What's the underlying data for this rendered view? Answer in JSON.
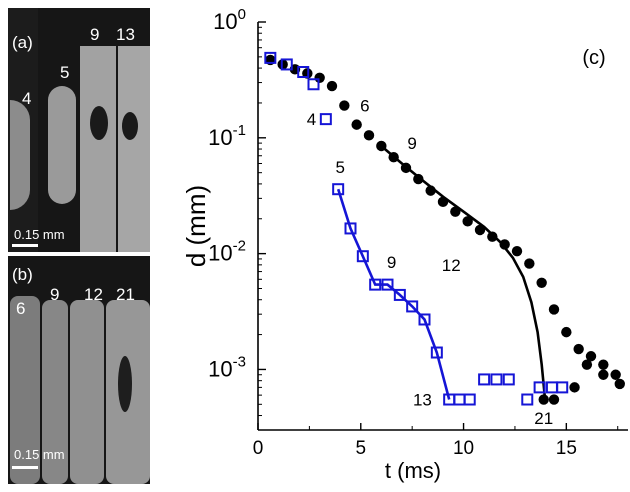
{
  "images": {
    "panel_a": {
      "label": "(a)",
      "frame_labels": [
        "4",
        "5",
        "9",
        "13"
      ],
      "scale_text": "0.15 mm"
    },
    "panel_b": {
      "label": "(b)",
      "frame_labels": [
        "6",
        "9",
        "12",
        "21"
      ],
      "scale_text": "0.15 mm"
    }
  },
  "chart_data": {
    "type": "scatter",
    "panel_label": "(c)",
    "xlabel": "t (ms)",
    "ylabel": "d (mm)",
    "xlim": [
      0,
      18
    ],
    "ylim": [
      0.0003,
      1
    ],
    "yscale": "log",
    "x_ticks": [
      0,
      5,
      10,
      15
    ],
    "y_ticks": [
      {
        "value": 1,
        "base": "10",
        "exp": "0"
      },
      {
        "value": 0.1,
        "base": "10",
        "exp": "-1"
      },
      {
        "value": 0.01,
        "base": "10",
        "exp": "-2"
      },
      {
        "value": 0.001,
        "base": "10",
        "exp": "-3"
      }
    ],
    "series": [
      {
        "marker": "circle-filled",
        "color": "#000000",
        "points": [
          [
            0.6,
            0.47
          ],
          [
            1.2,
            0.43
          ],
          [
            1.8,
            0.39
          ],
          [
            2.4,
            0.36
          ],
          [
            3.0,
            0.33
          ],
          [
            3.6,
            0.28
          ],
          [
            4.2,
            0.19
          ],
          [
            4.8,
            0.13
          ],
          [
            5.4,
            0.105
          ],
          [
            6.0,
            0.085
          ],
          [
            6.6,
            0.068
          ],
          [
            7.2,
            0.055
          ],
          [
            7.8,
            0.044
          ],
          [
            8.4,
            0.035
          ],
          [
            9.0,
            0.028
          ],
          [
            9.6,
            0.023
          ],
          [
            10.2,
            0.019
          ],
          [
            10.8,
            0.016
          ],
          [
            11.4,
            0.014
          ],
          [
            12.0,
            0.012
          ],
          [
            12.6,
            0.0105
          ],
          [
            13.2,
            0.0082
          ],
          [
            13.8,
            0.0056
          ],
          [
            14.4,
            0.0033
          ],
          [
            15.0,
            0.0021
          ],
          [
            15.6,
            0.0015
          ],
          [
            16.2,
            0.0013
          ],
          [
            16.8,
            0.0011
          ],
          [
            17.4,
            0.0009
          ],
          [
            13.9,
            0.00055
          ],
          [
            14.4,
            0.00055
          ],
          [
            15.4,
            0.0007
          ],
          [
            16.0,
            0.0011
          ],
          [
            16.8,
            0.0009
          ],
          [
            17.6,
            0.00075
          ]
        ]
      },
      {
        "marker": "square-open",
        "color": "#1515d6",
        "points": [
          [
            0.6,
            0.49
          ],
          [
            1.4,
            0.43
          ],
          [
            2.2,
            0.37
          ],
          [
            2.7,
            0.29
          ],
          [
            3.3,
            0.145
          ],
          [
            3.9,
            0.036
          ],
          [
            4.5,
            0.0165
          ],
          [
            5.1,
            0.0095
          ],
          [
            5.7,
            0.0054
          ],
          [
            6.3,
            0.0054
          ],
          [
            6.9,
            0.0044
          ],
          [
            7.5,
            0.0035
          ],
          [
            8.1,
            0.0027
          ],
          [
            8.7,
            0.0014
          ],
          [
            9.3,
            0.00055
          ],
          [
            9.8,
            0.00055
          ],
          [
            10.3,
            0.00055
          ],
          [
            11.0,
            0.00082
          ],
          [
            11.6,
            0.00082
          ],
          [
            12.2,
            0.00082
          ],
          [
            13.1,
            0.00055
          ],
          [
            13.7,
            0.0007
          ],
          [
            14.3,
            0.0007
          ],
          [
            14.8,
            0.0007
          ]
        ]
      }
    ],
    "fit_lines": [
      {
        "color": "#000000",
        "points": [
          [
            6.0,
            0.085
          ],
          [
            7.0,
            0.06
          ],
          [
            8.0,
            0.043
          ],
          [
            9.0,
            0.031
          ],
          [
            10.0,
            0.023
          ],
          [
            11.0,
            0.017
          ],
          [
            11.8,
            0.0125
          ],
          [
            12.4,
            0.0092
          ],
          [
            12.9,
            0.0063
          ],
          [
            13.3,
            0.0038
          ],
          [
            13.6,
            0.0021
          ],
          [
            13.8,
            0.0011
          ],
          [
            13.95,
            0.00058
          ]
        ]
      },
      {
        "color": "#1515d6",
        "points": [
          [
            3.9,
            0.036
          ],
          [
            4.5,
            0.0165
          ],
          [
            5.1,
            0.0095
          ],
          [
            5.7,
            0.0054
          ],
          [
            6.3,
            0.0054
          ],
          [
            6.9,
            0.0044
          ],
          [
            7.5,
            0.0035
          ],
          [
            8.1,
            0.0027
          ],
          [
            8.7,
            0.0014
          ],
          [
            9.3,
            0.00055
          ]
        ]
      }
    ],
    "annotations": [
      {
        "text": "4",
        "x": 2.6,
        "y": 0.145,
        "color": "#000000"
      },
      {
        "text": "6",
        "x": 5.2,
        "y": 0.19,
        "color": "#000000"
      },
      {
        "text": "9",
        "x": 7.5,
        "y": 0.09,
        "color": "#000000"
      },
      {
        "text": "12",
        "x": 9.4,
        "y": 0.008,
        "color": "#000000"
      },
      {
        "text": "21",
        "x": 13.9,
        "y": 0.00038,
        "color": "#000000"
      },
      {
        "text": "5",
        "x": 4.0,
        "y": 0.056,
        "color": "#000000"
      },
      {
        "text": "9",
        "x": 6.5,
        "y": 0.0085,
        "color": "#000000"
      },
      {
        "text": "13",
        "x": 8.0,
        "y": 0.00055,
        "color": "#000000"
      }
    ]
  }
}
